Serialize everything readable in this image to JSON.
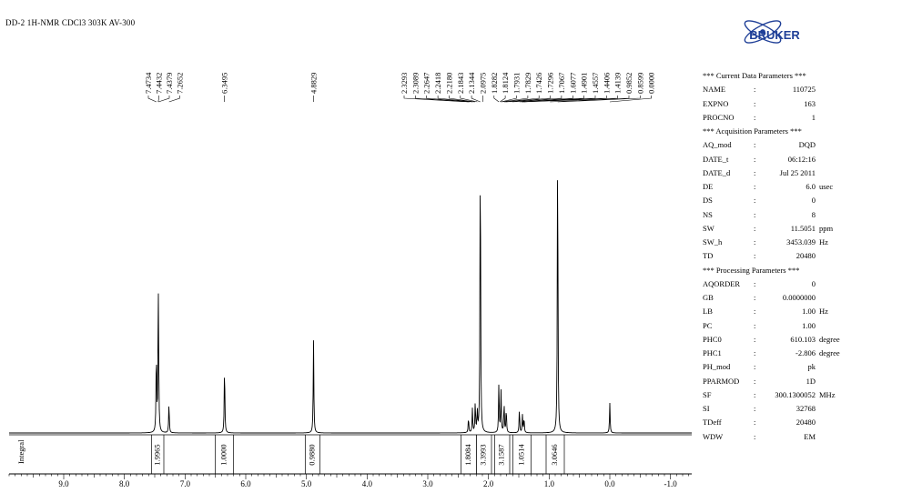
{
  "title": "DD-2  1H-NMR CDCl3  303K AV-300",
  "logo": {
    "text": "BRUKER",
    "color": "#1f3f97"
  },
  "chart_data": {
    "type": "line",
    "xlabel": "",
    "ylabel": "",
    "xlim": [
      9.9,
      -1.35
    ],
    "x_ticks": [
      "9.0",
      "8.0",
      "7.0",
      "6.0",
      "5.0",
      "4.0",
      "3.0",
      "2.0",
      "1.0",
      "0.0",
      "-1.0"
    ],
    "x_tick_values": [
      9,
      8,
      7,
      6,
      5,
      4,
      3,
      2,
      1,
      0,
      -1
    ],
    "grid": false,
    "integral_axis_label": "Integral",
    "peak_groups": [
      {
        "labels": [
          "7.4734",
          "7.4432",
          "7.4379",
          "7.2652"
        ],
        "values": [
          7.4734,
          7.4432,
          7.4379,
          7.2652
        ]
      },
      {
        "labels": [
          "6.3495"
        ],
        "values": [
          6.3495
        ]
      },
      {
        "labels": [
          "4.8829"
        ],
        "values": [
          4.8829
        ]
      },
      {
        "labels": [
          "2.3293",
          "2.3089",
          "2.2647",
          "2.2418",
          "2.2180",
          "2.1843",
          "2.1344",
          "2.0975",
          "1.8282",
          "1.8124",
          "1.7931",
          "1.7829",
          "1.7426",
          "1.7296",
          "1.7067",
          "1.6077",
          "1.4901",
          "1.4557",
          "1.4406",
          "1.4139",
          "0.9852",
          "0.8599",
          "0.0000"
        ],
        "values": [
          2.3293,
          2.3089,
          2.2647,
          2.2418,
          2.218,
          2.1843,
          2.1344,
          2.0975,
          1.8282,
          1.8124,
          1.7931,
          1.7829,
          1.7426,
          1.7296,
          1.7067,
          1.6077,
          1.4901,
          1.4557,
          1.4406,
          1.4139,
          0.9852,
          0.8599,
          0.0
        ]
      }
    ],
    "spectrum_peaks": [
      {
        "ppm": 7.4734,
        "height": 0.27
      },
      {
        "ppm": 7.4432,
        "height": 0.3
      },
      {
        "ppm": 7.4379,
        "height": 0.25
      },
      {
        "ppm": 7.2652,
        "height": 0.1
      },
      {
        "ppm": 6.3495,
        "height": 0.23
      },
      {
        "ppm": 4.8829,
        "height": 0.31
      },
      {
        "ppm": 2.3293,
        "height": 0.05
      },
      {
        "ppm": 2.2647,
        "height": 0.08
      },
      {
        "ppm": 2.218,
        "height": 0.1
      },
      {
        "ppm": 2.1843,
        "height": 0.07
      },
      {
        "ppm": 2.1344,
        "height": 1.0
      },
      {
        "ppm": 1.8282,
        "height": 0.17
      },
      {
        "ppm": 1.7931,
        "height": 0.14
      },
      {
        "ppm": 1.7426,
        "height": 0.1
      },
      {
        "ppm": 1.7067,
        "height": 0.08
      },
      {
        "ppm": 1.4901,
        "height": 0.08
      },
      {
        "ppm": 1.4406,
        "height": 0.06
      },
      {
        "ppm": 1.4139,
        "height": 0.05
      },
      {
        "ppm": 0.8599,
        "height": 1.0
      },
      {
        "ppm": 0.0,
        "height": 0.1
      }
    ],
    "integrals": [
      {
        "label": "1.9965",
        "from": 7.55,
        "to": 7.35,
        "value": 1.9965
      },
      {
        "label": "1.0000",
        "from": 6.5,
        "to": 6.2,
        "value": 1.0
      },
      {
        "label": "0.9880",
        "from": 5.02,
        "to": 4.78,
        "value": 0.988
      },
      {
        "label": "1.8084",
        "from": 2.45,
        "to": 2.2,
        "value": 1.8084
      },
      {
        "label": "3.3993",
        "from": 2.2,
        "to": 1.95,
        "value": 3.3993
      },
      {
        "label": "3.1587",
        "from": 1.9,
        "to": 1.65,
        "value": 3.1587
      },
      {
        "label": "1.0514",
        "from": 1.6,
        "to": 1.3,
        "value": 1.0514
      },
      {
        "label": "3.0646",
        "from": 1.05,
        "to": 0.75,
        "value": 3.0646
      }
    ]
  },
  "parameters": [
    {
      "type": "header",
      "text": "*** Current Data Parameters ***"
    },
    {
      "name": "NAME",
      "value": "110725",
      "unit": ""
    },
    {
      "name": "EXPNO",
      "value": "163",
      "unit": ""
    },
    {
      "name": "PROCNO",
      "value": "1",
      "unit": ""
    },
    {
      "type": "header",
      "text": "*** Acquisition Parameters ***"
    },
    {
      "name": "AQ_mod",
      "value": "DQD",
      "unit": ""
    },
    {
      "name": "DATE_t",
      "value": "06:12:16",
      "unit": ""
    },
    {
      "name": "DATE_d",
      "value": "Jul 25 2011",
      "unit": ""
    },
    {
      "name": "DE",
      "value": "6.0",
      "unit": "usec"
    },
    {
      "name": "DS",
      "value": "0",
      "unit": ""
    },
    {
      "name": "NS",
      "value": "8",
      "unit": ""
    },
    {
      "name": "SW",
      "value": "11.5051",
      "unit": "ppm"
    },
    {
      "name": "SW_h",
      "value": "3453.039",
      "unit": "Hz"
    },
    {
      "name": "TD",
      "value": "20480",
      "unit": ""
    },
    {
      "type": "header",
      "text": "*** Processing Parameters ***"
    },
    {
      "name": "AQORDER",
      "value": "0",
      "unit": ""
    },
    {
      "name": "GB",
      "value": "0.0000000",
      "unit": ""
    },
    {
      "name": "LB",
      "value": "1.00",
      "unit": "Hz"
    },
    {
      "name": "PC",
      "value": "1.00",
      "unit": ""
    },
    {
      "name": "PHC0",
      "value": "610.103",
      "unit": "degree"
    },
    {
      "name": "PHC1",
      "value": "-2.806",
      "unit": "degree"
    },
    {
      "name": "PH_mod",
      "value": "pk",
      "unit": ""
    },
    {
      "name": "PPARMOD",
      "value": "1D",
      "unit": ""
    },
    {
      "name": "SF",
      "value": "300.1300052",
      "unit": "MHz"
    },
    {
      "name": "SI",
      "value": "32768",
      "unit": ""
    },
    {
      "name": "TDeff",
      "value": "20480",
      "unit": ""
    },
    {
      "name": "WDW",
      "value": "EM",
      "unit": ""
    }
  ]
}
